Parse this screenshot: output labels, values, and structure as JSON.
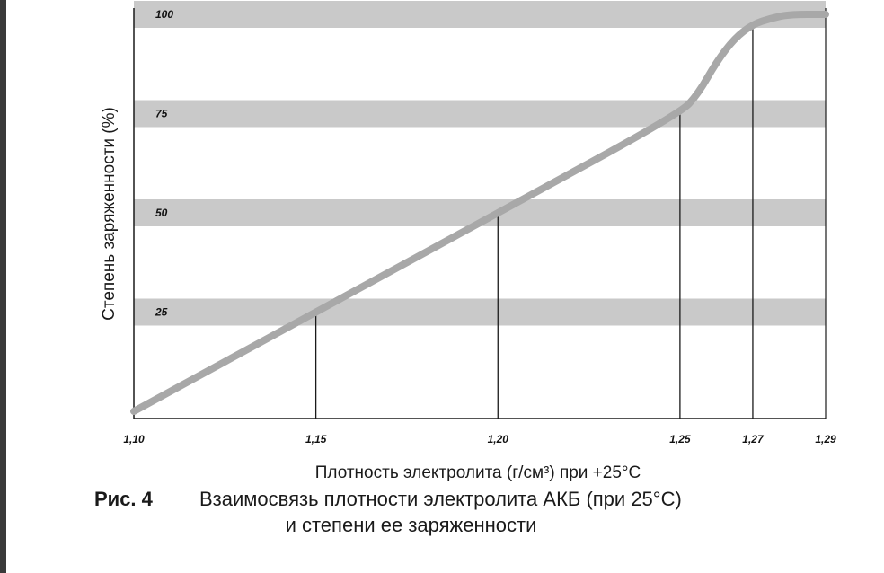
{
  "chart_data": {
    "type": "line",
    "xlabel": "Плотность электролита (г/см³) при +25°С",
    "ylabel": "Степень заряженности (%)",
    "x_ticks": [
      "1,10",
      "1,15",
      "1,20",
      "1,25",
      "1,27",
      "1,29"
    ],
    "x_tick_values": [
      1.1,
      1.15,
      1.2,
      1.25,
      1.27,
      1.29
    ],
    "y_band_labels": [
      "100",
      "75",
      "50",
      "25"
    ],
    "y_band_values": [
      100,
      75,
      50,
      25
    ],
    "xlim": [
      1.1,
      1.29
    ],
    "ylim": [
      0,
      100
    ],
    "series": [
      {
        "x": [
          1.1,
          1.15,
          1.2,
          1.25,
          1.255,
          1.26,
          1.265,
          1.27,
          1.275,
          1.28,
          1.29
        ],
        "y": [
          0,
          25,
          50,
          75,
          80,
          88,
          94,
          97.5,
          99,
          100,
          100
        ],
        "color": "#a8a8a8"
      }
    ],
    "grid": "horizontal bands at 25/50/75/100 and vertical drop lines at 1,15 1,20 1,25 1,27",
    "colors": {
      "band": "#c9c9c9",
      "line": "#a8a8a8",
      "axis": "#1a1a1a"
    }
  },
  "caption": {
    "figure": "Рис. 4",
    "line1": "Взаимосвязь плотности электролита АКБ (при 25°С)",
    "line2": "и степени ее заряженности"
  }
}
